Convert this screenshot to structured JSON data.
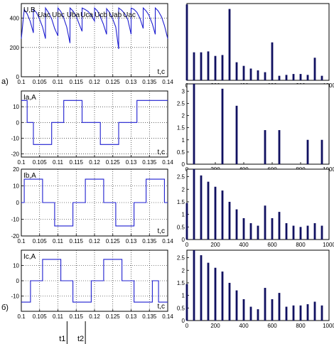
{
  "panel_labels": {
    "a": "а)",
    "b": "б)"
  },
  "time_markers": [
    {
      "label": "t1",
      "x": 0.1125
    },
    {
      "label": "t2",
      "x": 0.1175
    }
  ],
  "line_segment_labels": [
    "Uac",
    "Ubc",
    "Uba",
    "Uca",
    "Ucb",
    "Uab",
    "Uac"
  ],
  "chart_data": [
    {
      "type": "line",
      "ylabel": "U,B",
      "xlabel": "t,c",
      "xlim": [
        0.1,
        0.14
      ],
      "ylim": [
        0,
        500
      ],
      "xticks": [
        "0.1",
        "0.105",
        "0.11",
        "0.115",
        "0.12",
        "0.125",
        "0.13",
        "0.135",
        "0.14"
      ],
      "yticks": [
        "0",
        "200",
        "400",
        "600"
      ],
      "grid": true,
      "color": "#1f1fd0",
      "series": [
        {
          "x": [
            0.1,
            0.1008,
            0.1016,
            0.1024,
            0.1033,
            0.1033,
            0.1041,
            0.1049,
            0.1058,
            0.1066,
            0.1066,
            0.1074,
            0.1083,
            0.1091,
            0.11,
            0.11,
            0.1108,
            0.1116,
            0.1124,
            0.1133,
            0.1133,
            0.1141,
            0.1149,
            0.1158,
            0.1166,
            0.1166,
            0.1174,
            0.1183,
            0.1191,
            0.12,
            0.12,
            0.1208,
            0.1216,
            0.1224,
            0.1233,
            0.1233,
            0.1241,
            0.1249,
            0.1258,
            0.1266,
            0.1266,
            0.1274,
            0.1283,
            0.1291,
            0.13,
            0.13,
            0.1308,
            0.1316,
            0.1324,
            0.1333,
            0.1333,
            0.1341,
            0.1349,
            0.1358,
            0.1366,
            0.1366,
            0.1374,
            0.1383,
            0.1391,
            0.14
          ],
          "y": [
            260,
            460,
            430,
            380,
            300,
            460,
            440,
            400,
            340,
            260,
            470,
            440,
            395,
            330,
            280,
            470,
            445,
            400,
            340,
            230,
            470,
            450,
            420,
            360,
            310,
            470,
            460,
            445,
            420,
            380,
            470,
            450,
            410,
            360,
            290,
            465,
            440,
            400,
            340,
            190,
            470,
            455,
            430,
            390,
            290,
            470,
            460,
            440,
            400,
            330,
            470,
            450,
            420,
            360,
            290,
            470,
            450,
            410,
            350,
            260
          ]
        }
      ]
    },
    {
      "type": "bar",
      "xlim": [
        0,
        1000
      ],
      "ylim": [
        0,
        85
      ],
      "xticks": [
        "0",
        "200",
        "400",
        "600",
        "800",
        "1000"
      ],
      "yticks": [],
      "x": [
        0,
        50,
        100,
        150,
        200,
        250,
        300,
        350,
        400,
        450,
        500,
        550,
        600,
        650,
        700,
        750,
        800,
        850,
        900,
        950
      ],
      "values": [
        84,
        31,
        31,
        32,
        27,
        28,
        79,
        20,
        16,
        13,
        11,
        9,
        42,
        5,
        6,
        7,
        7,
        6,
        25,
        5
      ]
    },
    {
      "type": "line",
      "ylabel": "Ia,A",
      "xlabel": "t,c",
      "xlim": [
        0.1,
        0.14
      ],
      "ylim": [
        -22,
        20
      ],
      "xticks": [
        "0.1",
        "0.105",
        "0.11",
        "0.115",
        "0.12",
        "0.125",
        "0.13",
        "0.135",
        "0.14"
      ],
      "yticks": [
        "-20",
        "-10",
        "0",
        "10"
      ],
      "grid": true,
      "color": "#1f1fd0",
      "series": [
        {
          "x": [
            0.1,
            0.1016,
            0.1016,
            0.1033,
            0.1033,
            0.1083,
            0.1083,
            0.11,
            0.11,
            0.1116,
            0.1116,
            0.1166,
            0.1166,
            0.1183,
            0.1183,
            0.12,
            0.12,
            0.1216,
            0.1216,
            0.1266,
            0.1266,
            0.1283,
            0.1283,
            0.13,
            0.13,
            0.1316,
            0.1316,
            0.1366,
            0.1366,
            0.14
          ],
          "y": [
            14,
            14,
            0,
            0,
            -14,
            -14,
            0,
            0,
            0,
            0,
            14,
            14,
            0,
            0,
            0,
            0,
            0,
            0,
            -14,
            -14,
            0,
            0,
            0,
            0,
            0,
            0,
            14,
            14,
            14,
            14
          ]
        }
      ]
    },
    {
      "type": "bar",
      "xlim": [
        0,
        1000
      ],
      "ylim": [
        0,
        3.3
      ],
      "xticks": [
        "0",
        "200",
        "400",
        "600",
        "800",
        "1000"
      ],
      "yticks": [
        "0",
        "0.5",
        "1",
        "1.5",
        "2",
        "2.5",
        "3"
      ],
      "x": [
        50,
        250,
        350,
        550,
        650,
        850,
        950
      ],
      "values": [
        3.3,
        3.1,
        2.4,
        1.4,
        1.4,
        1.0,
        1.0
      ]
    },
    {
      "type": "line",
      "ylabel": "Ib,A",
      "xlabel": "t,c",
      "xlim": [
        0.1,
        0.14
      ],
      "ylim": [
        -20,
        20
      ],
      "xticks": [
        "0.1",
        "0.105",
        "0.11",
        "0.115",
        "0.12",
        "0.125",
        "0.13",
        "0.135",
        "0.14"
      ],
      "yticks": [
        "-20",
        "-10",
        "0",
        "10",
        "20"
      ],
      "grid": true,
      "color": "#1f1fd0",
      "series": [
        {
          "x": [
            0.1,
            0.1008,
            0.1008,
            0.1058,
            0.1058,
            0.1075,
            0.1075,
            0.1091,
            0.1091,
            0.1141,
            0.1141,
            0.1158,
            0.1158,
            0.1175,
            0.1175,
            0.1225,
            0.1225,
            0.1241,
            0.1241,
            0.1258,
            0.1258,
            0.1308,
            0.1308,
            0.1325,
            0.1325,
            0.1341,
            0.1341,
            0.1391,
            0.1391,
            0.14
          ],
          "y": [
            0,
            0,
            14,
            14,
            0,
            0,
            0,
            0,
            -14,
            -14,
            0,
            0,
            0,
            0,
            14,
            14,
            0,
            0,
            0,
            0,
            -14,
            -14,
            0,
            0,
            0,
            0,
            14,
            14,
            0,
            0
          ]
        }
      ]
    },
    {
      "type": "bar",
      "xlim": [
        0,
        1000
      ],
      "ylim": [
        0,
        2.8
      ],
      "xticks": [
        "0",
        "200",
        "400",
        "600",
        "800",
        "1000"
      ],
      "yticks": [
        "0",
        "0.5",
        "1",
        "1.5",
        "2",
        "2.5"
      ],
      "x": [
        0,
        50,
        100,
        150,
        200,
        250,
        300,
        350,
        400,
        450,
        500,
        550,
        600,
        650,
        700,
        750,
        800,
        850,
        900,
        950
      ],
      "values": [
        1.45,
        2.8,
        2.55,
        2.3,
        2.1,
        1.95,
        1.5,
        1.2,
        0.85,
        0.65,
        0.55,
        1.35,
        0.85,
        1.1,
        0.65,
        0.55,
        0.5,
        0.55,
        0.65,
        0.55
      ]
    },
    {
      "type": "line",
      "ylabel": "Ic,A",
      "xlabel": "t,c",
      "xlim": [
        0.1,
        0.14
      ],
      "ylim": [
        -20,
        20
      ],
      "xticks": [
        "0.1",
        "0.105",
        "0.11",
        "0.115",
        "0.12",
        "0.125",
        "0.13",
        "0.135",
        "0.14"
      ],
      "yticks": [
        "-10",
        "0",
        "10"
      ],
      "grid": true,
      "color": "#1f1fd0",
      "series": [
        {
          "x": [
            0.1,
            0.1025,
            0.1025,
            0.1041,
            0.1041,
            0.1058,
            0.1058,
            0.1108,
            0.1108,
            0.1125,
            0.1125,
            0.1141,
            0.1141,
            0.1191,
            0.1191,
            0.1208,
            0.1208,
            0.1225,
            0.1225,
            0.1275,
            0.1275,
            0.1291,
            0.1291,
            0.1308,
            0.1308,
            0.1358,
            0.1358,
            0.1375,
            0.1375,
            0.14
          ],
          "y": [
            -14,
            -14,
            0,
            0,
            0,
            0,
            14,
            14,
            0,
            0,
            0,
            0,
            -14,
            -14,
            0,
            0,
            0,
            0,
            14,
            14,
            0,
            0,
            0,
            0,
            -14,
            -14,
            0,
            0,
            -14,
            -14
          ]
        }
      ]
    },
    {
      "type": "bar",
      "xlim": [
        0,
        1000
      ],
      "ylim": [
        0,
        2.8
      ],
      "xticks": [
        "0",
        "200",
        "400",
        "600",
        "800",
        "1000"
      ],
      "yticks": [
        "0",
        "0.5",
        "1",
        "1.5",
        "2",
        "2.5"
      ],
      "x": [
        0,
        50,
        100,
        150,
        200,
        250,
        300,
        350,
        400,
        450,
        500,
        550,
        600,
        650,
        700,
        750,
        800,
        850,
        900,
        950
      ],
      "values": [
        1.45,
        2.8,
        2.6,
        2.3,
        2.1,
        1.95,
        1.5,
        1.2,
        0.85,
        0.55,
        0.45,
        1.3,
        0.85,
        1.1,
        0.55,
        0.6,
        0.6,
        0.65,
        0.75,
        0.6
      ]
    }
  ]
}
